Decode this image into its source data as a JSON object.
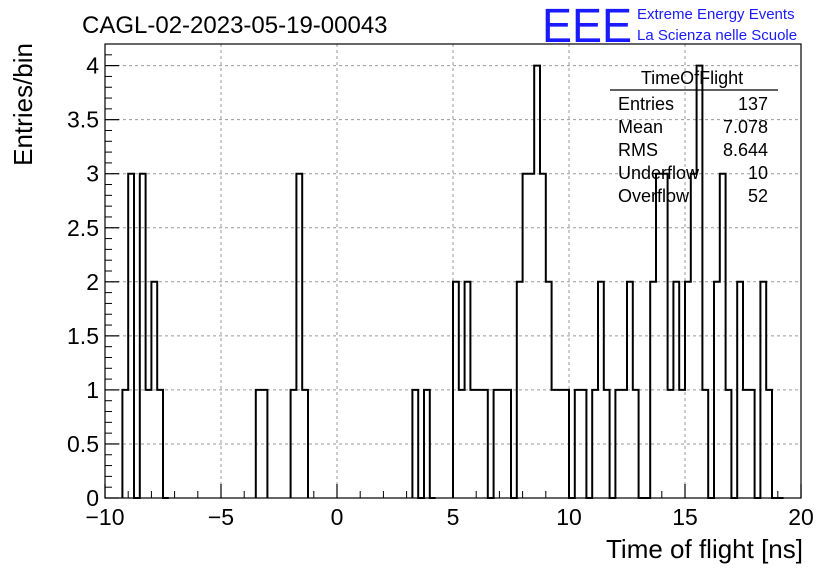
{
  "header": {
    "run_title": "CAGL-02-2023-05-19-00043",
    "logo_letters": "EEE",
    "org_line1": "Extreme Energy Events",
    "org_line2": "La Scienza nelle Scuole",
    "brand_color": "#1a1aff"
  },
  "stats_box": {
    "title": "TimeOfFlight",
    "rows": [
      {
        "label": "Entries",
        "value": "137"
      },
      {
        "label": "Mean",
        "value": "7.078"
      },
      {
        "label": "RMS",
        "value": "8.644"
      },
      {
        "label": "Underflow",
        "value": "10"
      },
      {
        "label": "Overflow",
        "value": "52"
      }
    ]
  },
  "chart_data": {
    "type": "bar",
    "histogram": "step",
    "xlabel": "Time of flight [ns]",
    "ylabel": "Entries/bin",
    "xlim": [
      -10,
      20
    ],
    "ylim": [
      0,
      4.2
    ],
    "bin_width": 0.25,
    "grid": true,
    "x_ticks": [
      -10,
      -5,
      0,
      5,
      10,
      15,
      20
    ],
    "x_tick_labels": [
      "−10",
      "−5",
      "0",
      "5",
      "10",
      "15",
      "20"
    ],
    "y_ticks": [
      0,
      0.5,
      1,
      1.5,
      2,
      2.5,
      3,
      3.5,
      4
    ],
    "y_tick_labels": [
      "0",
      "0.5",
      "1",
      "1.5",
      "2",
      "2.5",
      "3",
      "3.5",
      "4"
    ],
    "bin_low_edges": [
      -9.25,
      -9.0,
      -8.75,
      -8.5,
      -8.25,
      -8.0,
      -7.75,
      -7.5,
      -3.5,
      -3.25,
      -2.0,
      -1.75,
      -1.5,
      3.25,
      3.5,
      3.75,
      4.0,
      5.0,
      5.25,
      5.5,
      5.75,
      6.0,
      6.25,
      6.5,
      6.75,
      7.0,
      7.25,
      7.5,
      7.75,
      8.0,
      8.25,
      8.5,
      8.75,
      9.0,
      9.25,
      9.5,
      9.75,
      10.0,
      10.25,
      10.5,
      10.75,
      11.0,
      11.25,
      11.5,
      11.75,
      12.0,
      12.25,
      12.5,
      12.75,
      13.0,
      13.25,
      13.5,
      13.75,
      14.0,
      14.25,
      14.5,
      14.75,
      15.0,
      15.25,
      15.5,
      15.75,
      16.0,
      16.25,
      16.5,
      16.75,
      17.0,
      17.25,
      17.5,
      17.75,
      18.0,
      18.25,
      18.5,
      18.75,
      19.0
    ],
    "bin_counts": [
      1,
      3,
      0,
      3,
      1,
      2,
      1,
      0,
      1,
      1,
      1,
      3,
      1,
      1,
      0,
      1,
      0,
      2,
      1,
      2,
      1,
      1,
      1,
      0,
      1,
      1,
      1,
      0,
      2,
      3,
      3,
      4,
      3,
      2,
      1,
      1,
      1,
      0,
      1,
      1,
      0,
      1,
      2,
      1,
      0,
      1,
      1,
      2,
      1,
      0,
      0,
      2,
      3,
      3,
      1,
      2,
      1,
      2,
      3,
      4,
      1,
      0,
      2,
      3,
      1,
      0,
      2,
      1,
      1,
      0,
      2,
      1,
      0,
      0
    ]
  }
}
